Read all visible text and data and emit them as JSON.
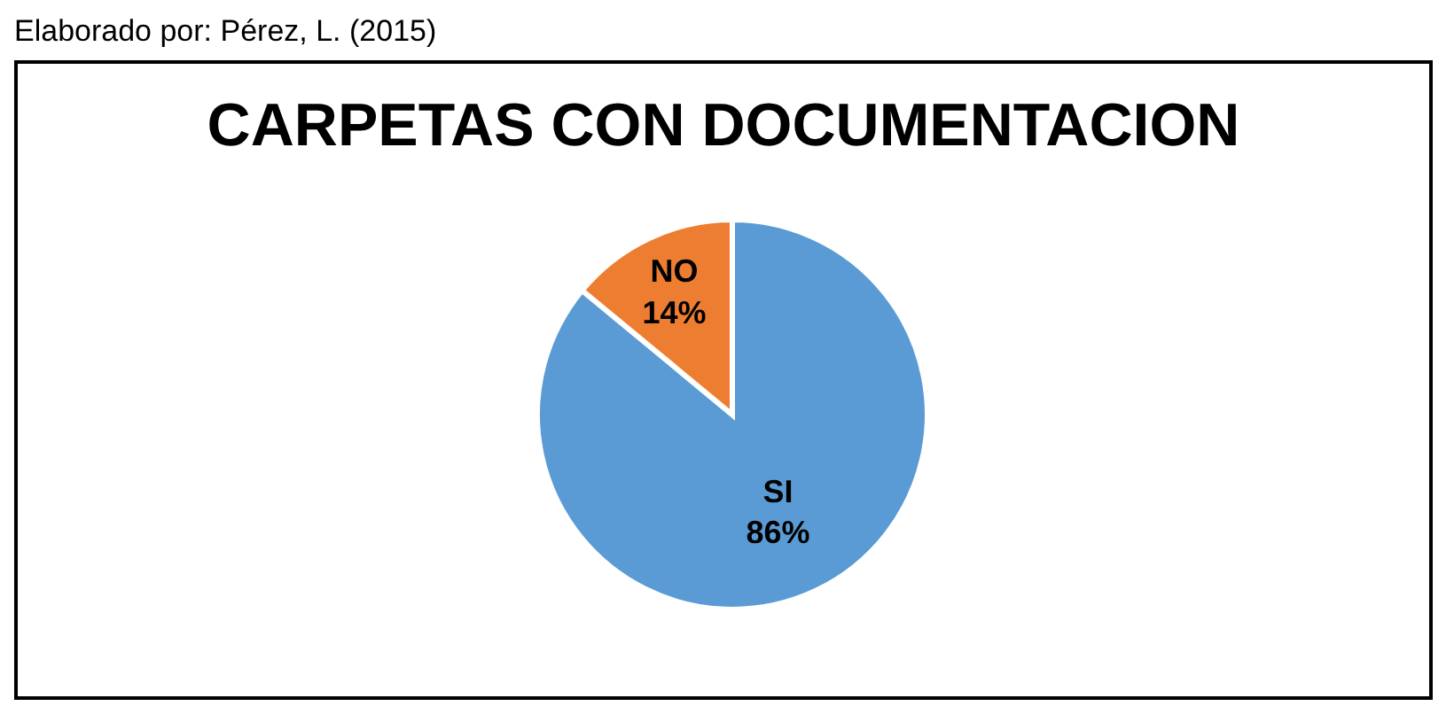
{
  "chart_data": {
    "type": "pie",
    "title": "CARPETAS CON DOCUMENTACION",
    "annotations": [
      "Elaborado por: Pérez, L. (2015)"
    ],
    "categories": [
      "SI",
      "NO"
    ],
    "values": [
      86,
      14
    ],
    "colors": [
      "#5b9bd5",
      "#ed7d31"
    ],
    "value_labels": [
      "86%",
      "14%"
    ],
    "legend": false
  }
}
